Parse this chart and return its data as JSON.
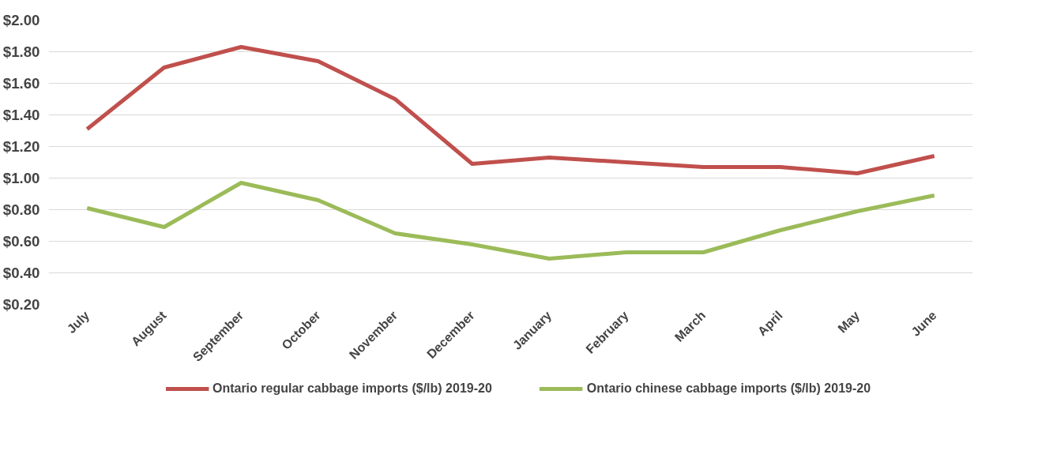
{
  "chart_data": {
    "type": "line",
    "categories": [
      "July",
      "August",
      "September",
      "October",
      "November",
      "December",
      "January",
      "February",
      "March",
      "April",
      "May",
      "June"
    ],
    "series": [
      {
        "name": "Ontario regular cabbage imports ($/lb) 2019-20",
        "color": "#c0504d",
        "values": [
          1.31,
          1.7,
          1.83,
          1.74,
          1.5,
          1.09,
          1.13,
          1.1,
          1.07,
          1.07,
          1.03,
          1.14
        ]
      },
      {
        "name": "Ontario chinese cabbage imports ($/lb) 2019-20",
        "color": "#9bbb59",
        "values": [
          0.81,
          0.69,
          0.97,
          0.86,
          0.65,
          0.58,
          0.49,
          0.53,
          0.53,
          0.67,
          0.79,
          0.89
        ]
      }
    ],
    "ylim": [
      0.2,
      2.0
    ],
    "yticks": [
      {
        "value": 0.2,
        "label": "$0.20"
      },
      {
        "value": 0.4,
        "label": "$0.40"
      },
      {
        "value": 0.6,
        "label": "$0.60"
      },
      {
        "value": 0.8,
        "label": "$0.80"
      },
      {
        "value": 1.0,
        "label": "$1.00"
      },
      {
        "value": 1.2,
        "label": "$1.20"
      },
      {
        "value": 1.4,
        "label": "$1.40"
      },
      {
        "value": 1.6,
        "label": "$1.60"
      },
      {
        "value": 1.8,
        "label": "$1.80"
      },
      {
        "value": 2.0,
        "label": "$2.00"
      }
    ],
    "grid": "y",
    "legend": "bottom",
    "marker": "none",
    "line_style": "solid"
  }
}
